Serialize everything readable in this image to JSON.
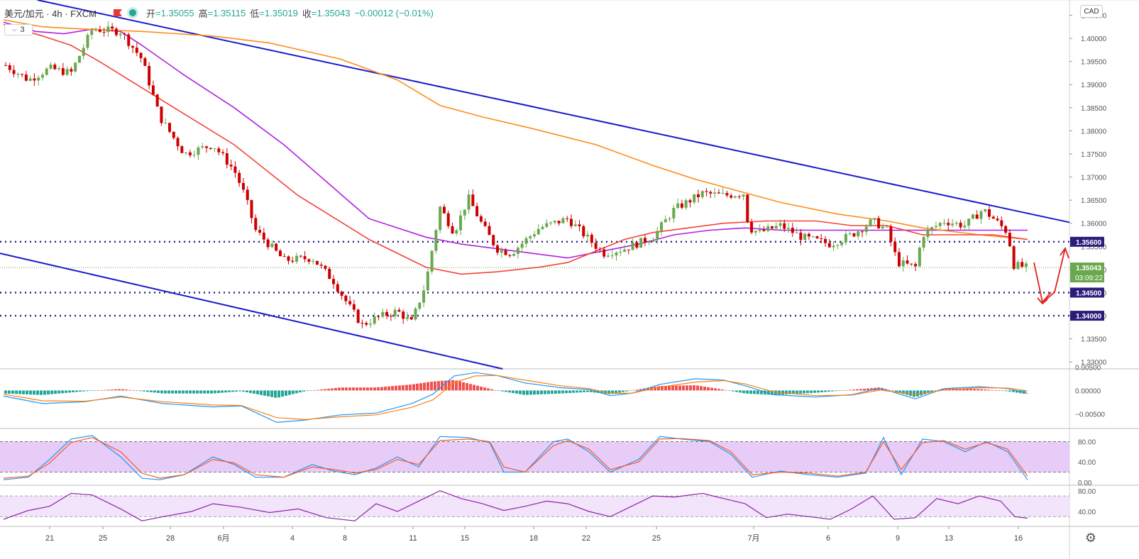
{
  "header": {
    "symbol": "美元/加元 · 4h · FXCM",
    "open_label": "开",
    "open_value": "=1.35055",
    "high_label": "高",
    "high_value": "=1.35115",
    "low_label": "低",
    "low_value": "=1.35019",
    "close_label": "收",
    "close_value": "=1.35043",
    "change": "−0.00012 (−0.01%)",
    "indicator_badge": "3",
    "currency": "CAD"
  },
  "colors": {
    "up": "#6aa84f",
    "down": "#cc0000",
    "trend": "#1a1acc",
    "ma_red": "#f44336",
    "ma_orange": "#ff8c1a",
    "ma_purple": "#b020e0",
    "level": "#2a1e7a",
    "stoch_band": "#e6ccf7",
    "rsi_band": "#f2e4fb",
    "macd_line": "#2196f3",
    "signal_line": "#ff7f0e",
    "hist_up": "#ef5350",
    "hist_down": "#26a69a"
  },
  "chart_data": {
    "type": "candlestick",
    "title": "美元/加元 · 4h · FXCM",
    "x_ticks": [
      "21",
      "25",
      "28",
      "6月",
      "4",
      "8",
      "11",
      "15",
      "18",
      "22",
      "25",
      "7月",
      "6",
      "9",
      "13",
      "16"
    ],
    "y_ticks": [
      "1.40500",
      "1.40000",
      "1.39500",
      "1.39000",
      "1.38500",
      "1.38000",
      "1.37500",
      "1.37000",
      "1.36500",
      "1.36000",
      "1.35500",
      "1.35000",
      "1.34500",
      "1.34000",
      "1.33500",
      "1.33000"
    ],
    "ylim": [
      1.3285,
      1.4083
    ],
    "anchors": {
      "x": [
        5,
        40,
        70,
        100,
        130,
        170,
        200,
        225,
        260,
        300,
        330,
        345,
        360,
        400,
        440,
        470,
        490,
        510,
        530,
        560,
        580,
        600,
        620,
        640,
        660,
        680,
        700,
        720,
        760,
        800,
        830,
        850,
        880,
        920,
        950,
        990,
        1020,
        1048,
        1055,
        1070,
        1100,
        1130,
        1170,
        1200,
        1230,
        1250,
        1265,
        1290,
        1300,
        1330,
        1360,
        1385,
        1400,
        1420,
        1428,
        1447
      ],
      "close": [
        1.3945,
        1.391,
        1.3935,
        1.3925,
        1.402,
        1.4015,
        1.3955,
        1.383,
        1.375,
        1.377,
        1.3715,
        1.366,
        1.3585,
        1.352,
        1.3525,
        1.3475,
        1.3425,
        1.338,
        1.3395,
        1.341,
        1.3385,
        1.347,
        1.3635,
        1.358,
        1.3655,
        1.3595,
        1.3545,
        1.3535,
        1.359,
        1.361,
        1.3565,
        1.3535,
        1.3545,
        1.357,
        1.363,
        1.3665,
        1.366,
        1.3665,
        1.359,
        1.358,
        1.3595,
        1.357,
        1.3555,
        1.3575,
        1.3605,
        1.3585,
        1.3515,
        1.3505,
        1.3575,
        1.3605,
        1.3595,
        1.363,
        1.361,
        1.358,
        1.351,
        1.3504
      ]
    },
    "candle_count": 250,
    "levels": [
      {
        "price": 1.356,
        "label": "1.35600"
      },
      {
        "price": 1.345,
        "label": "1.34500"
      },
      {
        "price": 1.34,
        "label": "1.34000"
      }
    ],
    "last_price": {
      "price": 1.35043,
      "label": "1.35043",
      "countdown": "03:09:22"
    },
    "trend_lines": [
      {
        "x1_ref": 0.035,
        "p1": 1.4083,
        "x2_ref": 1.0,
        "p2": 1.3602
      },
      {
        "x1_ref": 0.0,
        "p1": 1.3535,
        "x2_ref": 0.47,
        "p2": 1.3285
      }
    ],
    "moving_averages": [
      {
        "color_key": "ma_purple",
        "y": [
          1.4035,
          1.4015,
          1.401,
          1.402,
          1.4015,
          1.3985,
          1.392,
          1.385,
          1.377,
          1.369,
          1.361,
          1.357,
          1.3555,
          1.3545,
          1.3535,
          1.3525,
          1.354,
          1.3555,
          1.3575,
          1.3585,
          1.359,
          1.3585,
          1.3585,
          1.3585,
          1.3585,
          1.3585
        ],
        "x": [
          5,
          50,
          90,
          130,
          170,
          200,
          260,
          330,
          400,
          460,
          520,
          600,
          650,
          700,
          750,
          800,
          850,
          900,
          950,
          1000,
          1050,
          1100,
          1200,
          1300,
          1400,
          1448
        ]
      },
      {
        "color_key": "ma_orange",
        "y": [
          1.404,
          1.4025,
          1.402,
          1.4015,
          1.4005,
          1.399,
          1.3955,
          1.391,
          1.3855,
          1.383,
          1.3805,
          1.377,
          1.3725,
          1.3695,
          1.367,
          1.3645,
          1.362,
          1.3605,
          1.359,
          1.3575,
          1.3565
        ],
        "x": [
          5,
          60,
          120,
          200,
          300,
          380,
          480,
          560,
          620,
          680,
          750,
          840,
          920,
          980,
          1040,
          1100,
          1180,
          1250,
          1300,
          1380,
          1448
        ]
      },
      {
        "color_key": "ma_red",
        "y": [
          1.403,
          1.4005,
          1.3985,
          1.395,
          1.3855,
          1.377,
          1.366,
          1.3565,
          1.3505,
          1.349,
          1.3495,
          1.3505,
          1.3515,
          1.354,
          1.3565,
          1.358,
          1.36,
          1.3605,
          1.3605,
          1.3595,
          1.3595,
          1.3575,
          1.3575,
          1.3565
        ],
        "x": [
          5,
          60,
          100,
          140,
          240,
          330,
          420,
          520,
          600,
          650,
          700,
          760,
          800,
          840,
          880,
          920,
          1020,
          1080,
          1150,
          1200,
          1250,
          1300,
          1400,
          1448
        ]
      }
    ],
    "macd": {
      "y_ticks": [
        "0.00500",
        "0.00000",
        "−0.00500"
      ],
      "ylim": [
        -0.0078,
        0.0043
      ],
      "x": [
        5,
        60,
        120,
        170,
        230,
        300,
        340,
        390,
        430,
        480,
        530,
        580,
        610,
        640,
        670,
        700,
        740,
        790,
        830,
        860,
        890,
        930,
        980,
        1020,
        1050,
        1090,
        1150,
        1200,
        1240,
        1290,
        1330,
        1380,
        1420,
        1448
      ],
      "macd": [
        -0.0012,
        -0.0028,
        -0.0024,
        -0.0012,
        -0.0028,
        -0.0035,
        -0.0033,
        -0.0068,
        -0.0063,
        -0.0052,
        -0.0048,
        -0.0028,
        -0.0008,
        0.0031,
        0.0038,
        0.0032,
        0.0016,
        0.0006,
        0.0002,
        -0.0011,
        -0.0006,
        0.0013,
        0.0025,
        0.0022,
        0.001,
        -0.0009,
        -0.0014,
        -0.0009,
        0.0005,
        -0.0018,
        0.0004,
        0.0008,
        0.0004,
        -0.0006
      ],
      "signal": [
        -0.0008,
        -0.0022,
        -0.0023,
        -0.0014,
        -0.0024,
        -0.0031,
        -0.0032,
        -0.0058,
        -0.0062,
        -0.0056,
        -0.0052,
        -0.0036,
        -0.002,
        0.0017,
        0.0031,
        0.0032,
        0.0022,
        0.001,
        0.0004,
        -0.0006,
        -0.0006,
        0.0007,
        0.0018,
        0.0021,
        0.0014,
        -0.0003,
        -0.0011,
        -0.001,
        0.0001,
        -0.0009,
        0.0001,
        0.0006,
        0.0005,
        -0.0001
      ]
    },
    "stochastic": {
      "y_ticks": [
        "80.00",
        "40.00",
        "0.00"
      ],
      "ylim": [
        -3,
        103
      ],
      "bands": [
        20,
        80
      ],
      "x": [
        5,
        40,
        70,
        100,
        130,
        170,
        200,
        225,
        260,
        300,
        330,
        360,
        400,
        440,
        470,
        500,
        530,
        560,
        590,
        620,
        660,
        690,
        710,
        740,
        780,
        800,
        830,
        860,
        900,
        930,
        960,
        1000,
        1030,
        1060,
        1100,
        1140,
        1180,
        1220,
        1245,
        1270,
        1300,
        1330,
        1360,
        1390,
        1420,
        1448
      ],
      "k": [
        5,
        10,
        45,
        85,
        92,
        50,
        8,
        5,
        15,
        50,
        35,
        10,
        10,
        35,
        22,
        15,
        28,
        50,
        30,
        90,
        88,
        78,
        20,
        20,
        80,
        85,
        60,
        20,
        45,
        90,
        85,
        80,
        55,
        10,
        22,
        15,
        10,
        18,
        88,
        15,
        85,
        80,
        60,
        80,
        60,
        5
      ],
      "d": [
        8,
        12,
        38,
        78,
        88,
        60,
        18,
        8,
        15,
        45,
        38,
        15,
        10,
        30,
        25,
        18,
        25,
        45,
        35,
        82,
        85,
        80,
        30,
        20,
        72,
        82,
        65,
        25,
        40,
        85,
        86,
        82,
        60,
        15,
        20,
        18,
        12,
        20,
        80,
        25,
        78,
        82,
        65,
        78,
        65,
        12
      ]
    },
    "rsi": {
      "y_ticks": [
        "80.00",
        "40.00"
      ],
      "ylim": [
        14,
        88
      ],
      "bands": [
        30,
        70
      ],
      "x": [
        5,
        40,
        70,
        100,
        130,
        170,
        200,
        230,
        270,
        300,
        340,
        380,
        420,
        460,
        500,
        530,
        560,
        590,
        620,
        650,
        680,
        710,
        740,
        770,
        800,
        830,
        860,
        890,
        920,
        950,
        990,
        1020,
        1050,
        1080,
        1110,
        1140,
        1170,
        1200,
        1230,
        1260,
        1290,
        1320,
        1350,
        1380,
        1410,
        1430,
        1448
      ],
      "v": [
        25,
        42,
        50,
        75,
        72,
        45,
        22,
        30,
        40,
        55,
        48,
        38,
        45,
        28,
        22,
        55,
        40,
        60,
        80,
        65,
        55,
        42,
        50,
        60,
        55,
        40,
        30,
        50,
        70,
        68,
        75,
        65,
        55,
        28,
        35,
        30,
        25,
        45,
        70,
        25,
        28,
        65,
        55,
        70,
        60,
        30,
        27
      ]
    }
  }
}
